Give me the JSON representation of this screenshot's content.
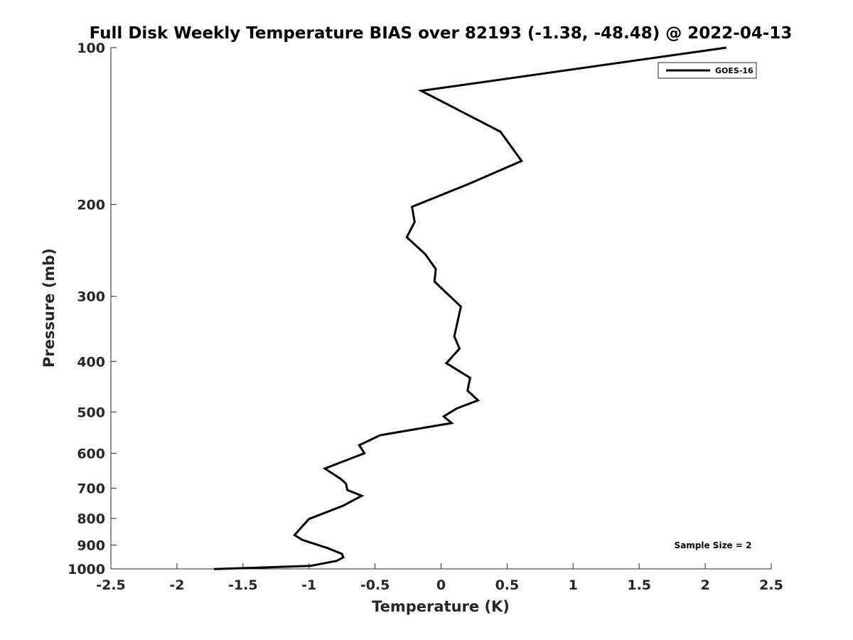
{
  "chart_data": {
    "type": "line",
    "title": "Full Disk Weekly Temperature BIAS over 82193 (-1.38, -48.48) @ 2022-04-13",
    "xlabel": "Temperature (K)",
    "ylabel": "Pressure (mb)",
    "xlim": [
      -2.5,
      2.5
    ],
    "ylim": [
      100,
      1000
    ],
    "y_scale": "log",
    "y_reversed": true,
    "x_ticks": [
      -2.5,
      -2,
      -1.5,
      -1,
      -0.5,
      0,
      0.5,
      1,
      1.5,
      2,
      2.5
    ],
    "x_tick_labels": [
      "-2.5",
      "-2",
      "-1.5",
      "-1",
      "-0.5",
      "0",
      "0.5",
      "1",
      "1.5",
      "2",
      "2.5"
    ],
    "y_ticks": [
      100,
      200,
      300,
      400,
      500,
      600,
      700,
      800,
      900,
      1000
    ],
    "y_tick_labels": [
      "100",
      "200",
      "300",
      "400",
      "500",
      "600",
      "700",
      "800",
      "900",
      "1000"
    ],
    "grid": false,
    "legend_position": "top-right",
    "annotation": "Sample Size = 2",
    "series": [
      {
        "name": "GOES-16",
        "color": "#000000",
        "x": [
          2.16,
          -0.15,
          0.45,
          0.61,
          0.2,
          -0.22,
          -0.2,
          -0.26,
          -0.12,
          -0.04,
          -0.05,
          0.15,
          0.1,
          0.14,
          0.04,
          0.22,
          0.2,
          0.28,
          0.12,
          0.02,
          0.08,
          -0.46,
          -0.62,
          -0.58,
          -0.88,
          -0.76,
          -0.72,
          -0.71,
          -0.6,
          -0.74,
          -1.0,
          -1.11,
          -1.05,
          -0.86,
          -0.75,
          -0.74,
          -0.79,
          -0.99,
          -1.72
        ],
        "y": [
          100,
          121,
          145,
          165,
          183,
          202,
          216,
          231,
          249,
          266,
          281,
          314,
          358,
          378,
          403,
          430,
          455,
          475,
          492,
          510,
          525,
          554,
          579,
          600,
          642,
          672,
          686,
          706,
          724,
          756,
          802,
          861,
          880,
          912,
          936,
          950,
          965,
          987,
          1001
        ]
      }
    ]
  }
}
